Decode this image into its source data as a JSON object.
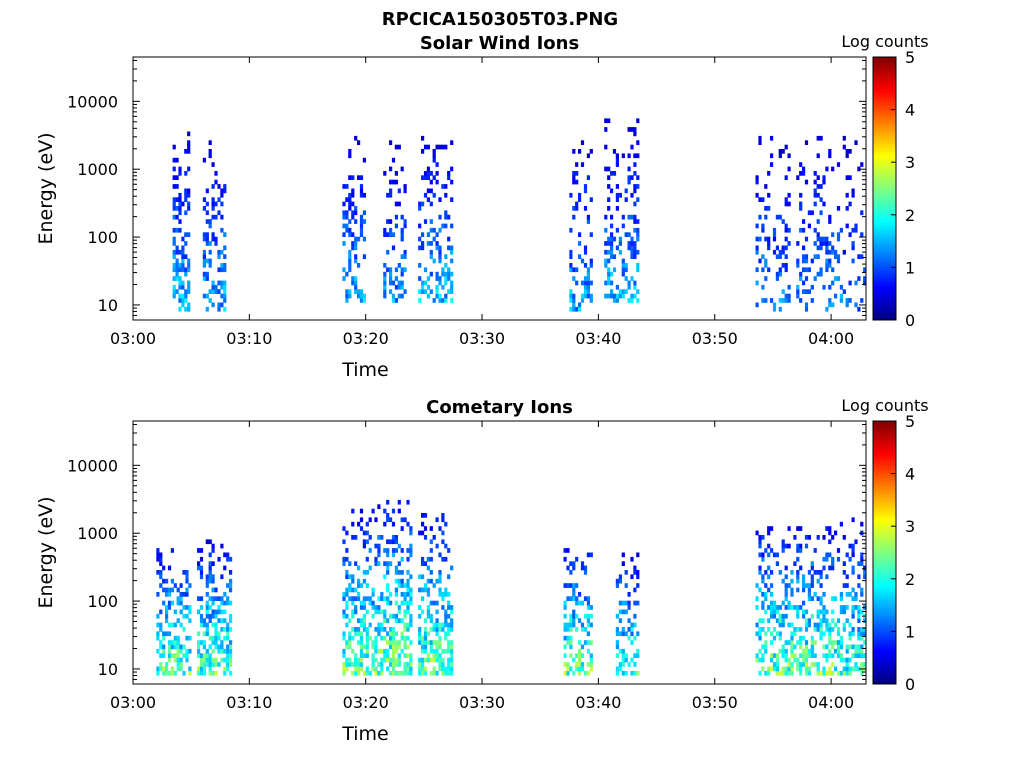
{
  "figure": {
    "title": "RPCICA150305T03.PNG"
  },
  "colorbar": {
    "label": "Log counts",
    "ticks": [
      "0",
      "1",
      "2",
      "3",
      "4",
      "5"
    ],
    "range": [
      0,
      5
    ],
    "colormap": "jet"
  },
  "chart_data": [
    {
      "type": "heatmap",
      "title": "Solar Wind Ions",
      "xlabel": "Time",
      "ylabel": "Energy (eV)",
      "yscale": "log",
      "xlim": [
        "03:00",
        "04:03"
      ],
      "ylim": [
        6,
        45000
      ],
      "xticks": [
        "03:00",
        "03:10",
        "03:20",
        "03:30",
        "03:40",
        "03:50",
        "04:00"
      ],
      "yticks": [
        "10",
        "100",
        "1000",
        "10000"
      ],
      "grid": false,
      "clusters": [
        {
          "tmin": 3.4,
          "tmax": 4.8,
          "emin": 8,
          "emax": 3500,
          "peak": 1.9,
          "density": 0.5
        },
        {
          "tmin": 6.0,
          "tmax": 7.8,
          "emin": 8,
          "emax": 3000,
          "peak": 1.8,
          "density": 0.45
        },
        {
          "tmin": 18.0,
          "tmax": 20.0,
          "emin": 10,
          "emax": 3000,
          "peak": 1.8,
          "density": 0.35
        },
        {
          "tmin": 21.5,
          "tmax": 23.5,
          "emin": 10,
          "emax": 2500,
          "peak": 1.7,
          "density": 0.3
        },
        {
          "tmin": 24.5,
          "tmax": 27.5,
          "emin": 10,
          "emax": 3000,
          "peak": 1.9,
          "density": 0.4
        },
        {
          "tmin": 37.5,
          "tmax": 39.5,
          "emin": 8,
          "emax": 3000,
          "peak": 1.8,
          "density": 0.3
        },
        {
          "tmin": 40.5,
          "tmax": 43.5,
          "emin": 10,
          "emax": 5000,
          "peak": 1.8,
          "density": 0.35
        },
        {
          "tmin": 53.5,
          "tmax": 56.5,
          "emin": 8,
          "emax": 3000,
          "peak": 1.6,
          "density": 0.25
        },
        {
          "tmin": 57.0,
          "tmax": 61.0,
          "emin": 8,
          "emax": 3000,
          "peak": 1.7,
          "density": 0.25
        },
        {
          "tmin": 61.0,
          "tmax": 63.0,
          "emin": 8,
          "emax": 3000,
          "peak": 1.4,
          "density": 0.25
        }
      ]
    },
    {
      "type": "heatmap",
      "title": "Cometary Ions",
      "xlabel": "Time",
      "ylabel": "Energy (eV)",
      "yscale": "log",
      "xlim": [
        "03:00",
        "04:03"
      ],
      "ylim": [
        6,
        45000
      ],
      "xticks": [
        "03:00",
        "03:10",
        "03:20",
        "03:30",
        "03:40",
        "03:50",
        "04:00"
      ],
      "yticks": [
        "10",
        "100",
        "1000",
        "10000"
      ],
      "grid": false,
      "clusters": [
        {
          "tmin": 2.0,
          "tmax": 5.0,
          "emin": 8,
          "emax": 600,
          "peak": 2.8,
          "density": 0.55
        },
        {
          "tmin": 5.5,
          "tmax": 8.5,
          "emin": 8,
          "emax": 700,
          "peak": 2.8,
          "density": 0.55
        },
        {
          "tmin": 18.0,
          "tmax": 21.0,
          "emin": 8,
          "emax": 2000,
          "peak": 2.9,
          "density": 0.55
        },
        {
          "tmin": 21.0,
          "tmax": 23.8,
          "emin": 8,
          "emax": 3000,
          "peak": 3.0,
          "density": 0.55
        },
        {
          "tmin": 24.5,
          "tmax": 27.5,
          "emin": 8,
          "emax": 2000,
          "peak": 2.9,
          "density": 0.55
        },
        {
          "tmin": 37.0,
          "tmax": 39.5,
          "emin": 8,
          "emax": 600,
          "peak": 2.9,
          "density": 0.5
        },
        {
          "tmin": 41.5,
          "tmax": 43.5,
          "emin": 8,
          "emax": 500,
          "peak": 2.6,
          "density": 0.4
        },
        {
          "tmin": 53.5,
          "tmax": 57.0,
          "emin": 8,
          "emax": 1200,
          "peak": 2.9,
          "density": 0.5
        },
        {
          "tmin": 57.0,
          "tmax": 60.5,
          "emin": 8,
          "emax": 1200,
          "peak": 2.9,
          "density": 0.5
        },
        {
          "tmin": 60.5,
          "tmax": 63.0,
          "emin": 8,
          "emax": 1500,
          "peak": 2.6,
          "density": 0.5
        }
      ]
    }
  ]
}
